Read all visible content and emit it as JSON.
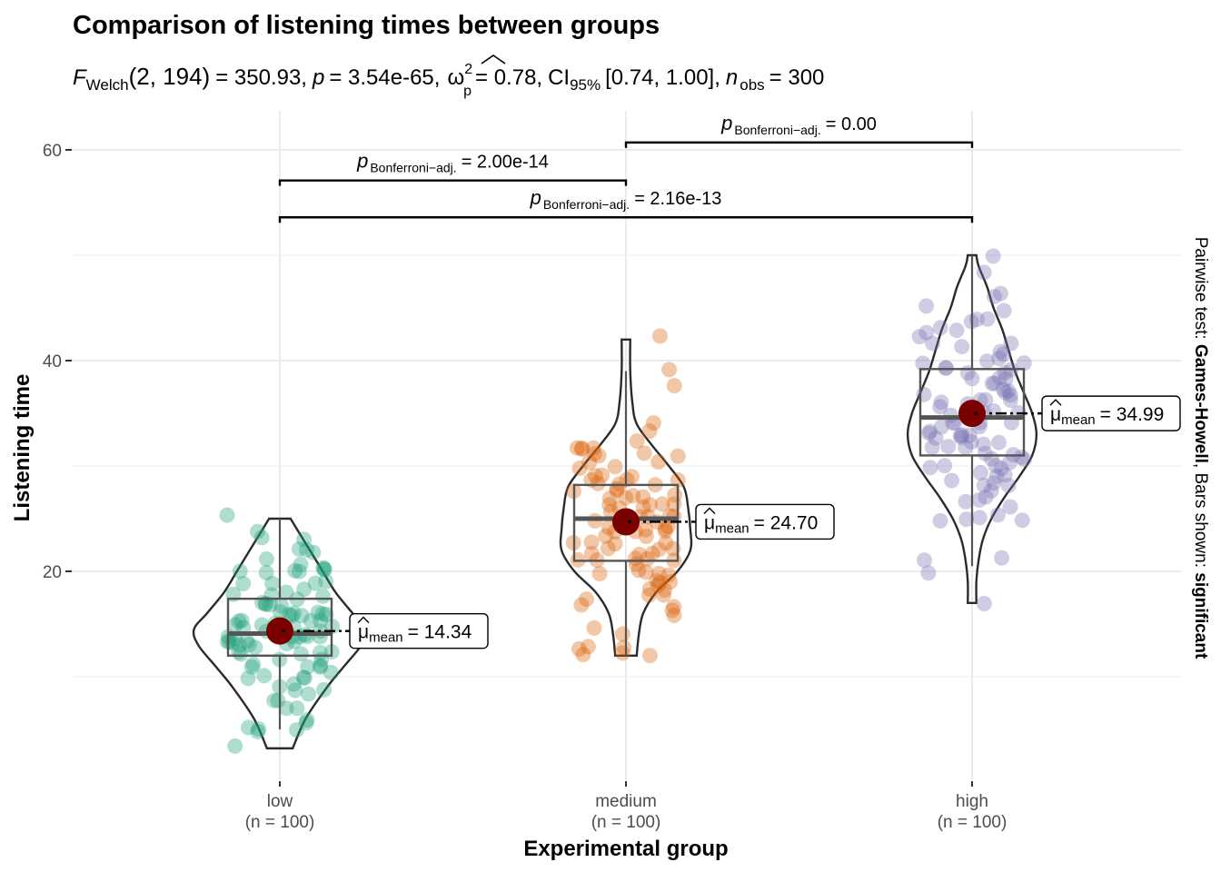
{
  "chart_data": {
    "type": "violin-box-scatter",
    "title": "Comparison of listening times between groups",
    "subtitle": {
      "statistic_symbol": "F",
      "statistic_sub": "Welch",
      "df": "(2, 194)",
      "statistic_value": "= 350.93,",
      "p_symbol": "p",
      "p_value": "= 3.54e-65,",
      "effect_symbol": "ω",
      "effect_sup": "2",
      "effect_sub": "p",
      "effect_value": "= 0.78,",
      "ci_symbol": "CI",
      "ci_sub": "95%",
      "ci_value": "[0.74, 1.00],",
      "n_symbol": "n",
      "n_sub": "obs",
      "n_value": "= 300"
    },
    "xlabel": "Experimental group",
    "ylabel": "Listening time",
    "ylim": [
      0,
      63
    ],
    "yticks": [
      20,
      40,
      60
    ],
    "ytick_labels": [
      "20",
      "40",
      "60"
    ],
    "grid": true,
    "categories": [
      "low",
      "medium",
      "high"
    ],
    "category_counts": [
      "(n = 100)",
      "(n = 100)",
      "(n = 100)"
    ],
    "colors": {
      "low": "#1b9e77",
      "medium": "#d95f02",
      "high": "#7570b3",
      "mean_point": "#7a0000",
      "violin_outline": "#2b2b2b",
      "box_outline": "#555555",
      "grid": "#ebebeb"
    },
    "groups": [
      {
        "name": "low",
        "mean": 14.34,
        "mean_label": "= 14.34",
        "box": {
          "q1": 12.0,
          "median": 14.1,
          "q3": 17.4,
          "whisker_low": 5.0,
          "whisker_high": 25.0
        },
        "violin": {
          "y": [
            3.2,
            6,
            9,
            11,
            13,
            14.5,
            16,
            18,
            20,
            22,
            24,
            25
          ],
          "width": [
            0.06,
            0.12,
            0.22,
            0.3,
            0.38,
            0.4,
            0.34,
            0.26,
            0.2,
            0.14,
            0.08,
            0.05
          ]
        },
        "points": [
          25,
          24,
          23,
          23,
          22,
          22,
          22,
          21,
          21,
          20,
          20,
          20,
          20,
          20,
          20,
          20,
          19,
          19,
          19,
          19,
          18,
          18,
          18,
          18,
          18,
          17,
          17,
          17,
          17,
          17,
          17,
          16,
          16,
          16,
          16,
          16,
          16,
          16,
          16,
          15,
          15,
          15,
          15,
          15,
          15,
          15,
          15,
          15,
          15,
          14,
          14,
          14,
          14,
          14,
          14,
          14,
          14,
          14,
          13,
          13,
          13,
          13,
          13,
          13,
          13,
          13,
          13,
          12,
          12,
          12,
          12,
          12,
          12,
          12,
          11,
          11,
          11,
          11,
          11,
          10,
          10,
          10,
          10,
          10,
          9,
          9,
          9,
          9,
          8,
          8,
          8,
          7,
          7,
          6,
          6,
          5,
          5,
          5,
          5,
          3.2
        ]
      },
      {
        "name": "medium",
        "mean": 24.7,
        "mean_label": "= 24.70",
        "box": {
          "q1": 21.0,
          "median": 25.0,
          "q3": 28.2,
          "whisker_low": 12.0,
          "whisker_high": 39.0
        },
        "violin": {
          "y": [
            12,
            14,
            16,
            18,
            20,
            22,
            24,
            26,
            28,
            30,
            32,
            34,
            36,
            39,
            42
          ],
          "width": [
            0.05,
            0.06,
            0.08,
            0.14,
            0.24,
            0.3,
            0.3,
            0.29,
            0.27,
            0.2,
            0.12,
            0.05,
            0.03,
            0.02,
            0.02
          ]
        },
        "points": [
          42,
          39,
          38,
          34,
          33,
          32,
          32,
          32,
          32,
          32,
          31,
          31,
          31,
          31,
          30,
          30,
          30,
          30,
          29,
          29,
          29,
          29,
          29,
          29,
          28,
          28,
          28,
          28,
          28,
          28,
          27,
          27,
          27,
          27,
          27,
          26,
          26,
          26,
          26,
          26,
          26,
          26,
          25,
          25,
          25,
          25,
          25,
          25,
          25,
          24,
          24,
          24,
          24,
          24,
          24,
          24,
          23,
          23,
          23,
          23,
          23,
          23,
          22,
          22,
          22,
          22,
          22,
          22,
          21,
          21,
          21,
          21,
          21,
          21,
          20,
          20,
          20,
          20,
          20,
          19,
          19,
          19,
          19,
          18,
          18,
          18,
          18,
          17,
          17,
          17,
          16,
          16,
          15,
          14,
          13,
          13,
          13,
          12,
          12,
          12
        ]
      },
      {
        "name": "high",
        "mean": 34.99,
        "mean_label": "= 34.99",
        "box": {
          "q1": 31.0,
          "median": 34.6,
          "q3": 39.2,
          "whisker_low": 20.5,
          "whisker_high": 50.0
        },
        "violin": {
          "y": [
            17,
            19,
            21,
            23,
            25,
            27,
            29,
            31,
            33,
            35,
            37,
            39,
            41,
            43,
            45,
            47,
            49,
            50
          ],
          "width": [
            0.02,
            0.02,
            0.03,
            0.05,
            0.09,
            0.15,
            0.22,
            0.28,
            0.3,
            0.28,
            0.24,
            0.2,
            0.17,
            0.14,
            0.1,
            0.07,
            0.03,
            0.02
          ]
        },
        "points": [
          50,
          48,
          46,
          46,
          45,
          45,
          44,
          44,
          44,
          43,
          43,
          43,
          42,
          42,
          42,
          41,
          41,
          41,
          40,
          40,
          40,
          40,
          39,
          39,
          39,
          39,
          39,
          38,
          38,
          38,
          38,
          38,
          37,
          37,
          37,
          37,
          37,
          36,
          36,
          36,
          36,
          36,
          36,
          35,
          35,
          35,
          35,
          35,
          35,
          35,
          34,
          34,
          34,
          34,
          34,
          34,
          33,
          33,
          33,
          33,
          33,
          33,
          33,
          32,
          32,
          32,
          32,
          32,
          32,
          31,
          31,
          31,
          31,
          31,
          30,
          30,
          30,
          30,
          30,
          29,
          29,
          29,
          29,
          28,
          28,
          28,
          28,
          27,
          27,
          27,
          26,
          25,
          25,
          25,
          25,
          25,
          21,
          21,
          20,
          17
        ]
      }
    ],
    "mean_symbol": "μ",
    "mean_sub": "mean",
    "brackets": [
      {
        "from": "low",
        "to": "medium",
        "p_symbol": "p",
        "p_sub": "Bonferroni−adj.",
        "p_text": "= 2.00e-14",
        "y": 57.1
      },
      {
        "from": "low",
        "to": "high",
        "p_symbol": "p",
        "p_sub": "Bonferroni−adj.",
        "p_text": "= 2.16e-13",
        "y": 53.6
      },
      {
        "from": "medium",
        "to": "high",
        "p_symbol": "p",
        "p_sub": "Bonferroni−adj.",
        "p_text": "= 0.00",
        "y": 60.7
      }
    ],
    "caption": {
      "prefix": "Pairwise test: ",
      "test": "Games-Howell",
      "middle": ", Bars shown: ",
      "shown": "significant"
    }
  }
}
